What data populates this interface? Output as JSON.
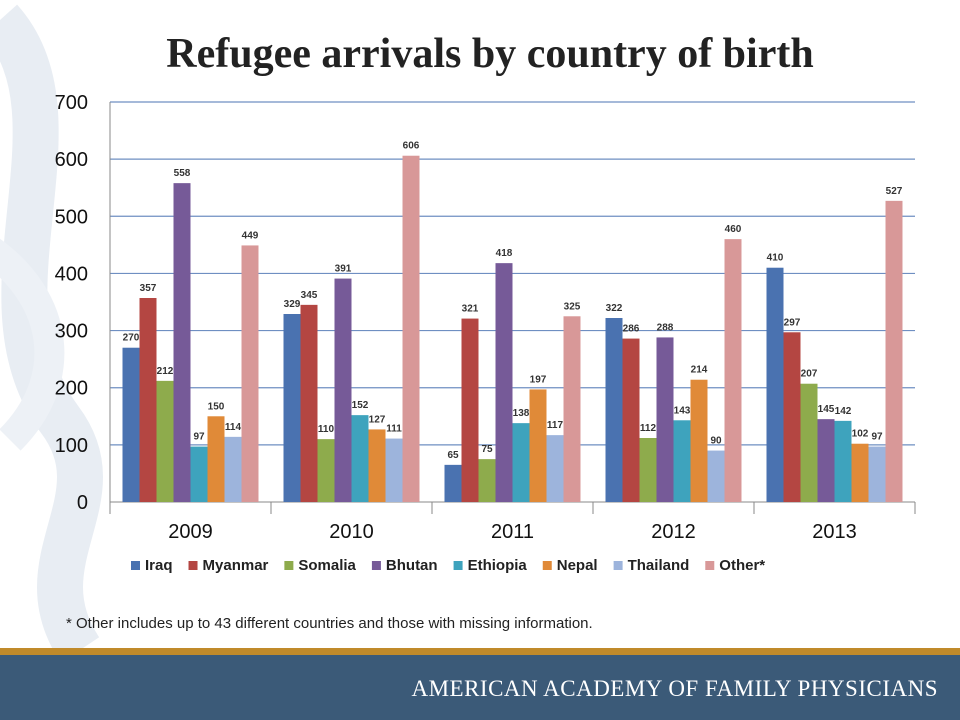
{
  "slide": {
    "title": "Refugee arrivals by country of birth",
    "footnote": "* Other includes up to 43 different countries and those with missing information.",
    "organization": "AMERICAN ACADEMY OF FAMILY PHYSICIANS",
    "colors": {
      "footer_bar": "#3b5a78",
      "footer_accent": "#c08a2a"
    }
  },
  "chart_data": {
    "type": "bar",
    "title": "Refugee arrivals by country of birth",
    "xlabel": "",
    "ylabel": "",
    "categories": [
      "2009",
      "2010",
      "2011",
      "2012",
      "2013"
    ],
    "ylim": [
      0,
      700
    ],
    "yticks": [
      0,
      100,
      200,
      300,
      400,
      500,
      600,
      700
    ],
    "grid": true,
    "legend_position": "bottom",
    "series": [
      {
        "name": "Iraq",
        "color": "#4a72b0",
        "values": [
          270,
          329,
          65,
          322,
          410
        ]
      },
      {
        "name": "Myanmar",
        "color": "#b44642",
        "values": [
          357,
          345,
          321,
          286,
          297
        ]
      },
      {
        "name": "Somalia",
        "color": "#8eab4c",
        "values": [
          212,
          110,
          75,
          112,
          207
        ]
      },
      {
        "name": "Bhutan",
        "color": "#765a98",
        "values": [
          558,
          391,
          418,
          288,
          145
        ]
      },
      {
        "name": "Ethiopia",
        "color": "#3ea3bd",
        "values": [
          97,
          152,
          138,
          143,
          142
        ]
      },
      {
        "name": "Nepal",
        "color": "#e08a38",
        "values": [
          150,
          127,
          197,
          214,
          102
        ]
      },
      {
        "name": "Thailand",
        "color": "#9db4dc",
        "values": [
          114,
          111,
          117,
          90,
          97
        ]
      },
      {
        "name": "Other*",
        "color": "#d89898",
        "values": [
          449,
          606,
          325,
          460,
          527
        ]
      }
    ]
  }
}
